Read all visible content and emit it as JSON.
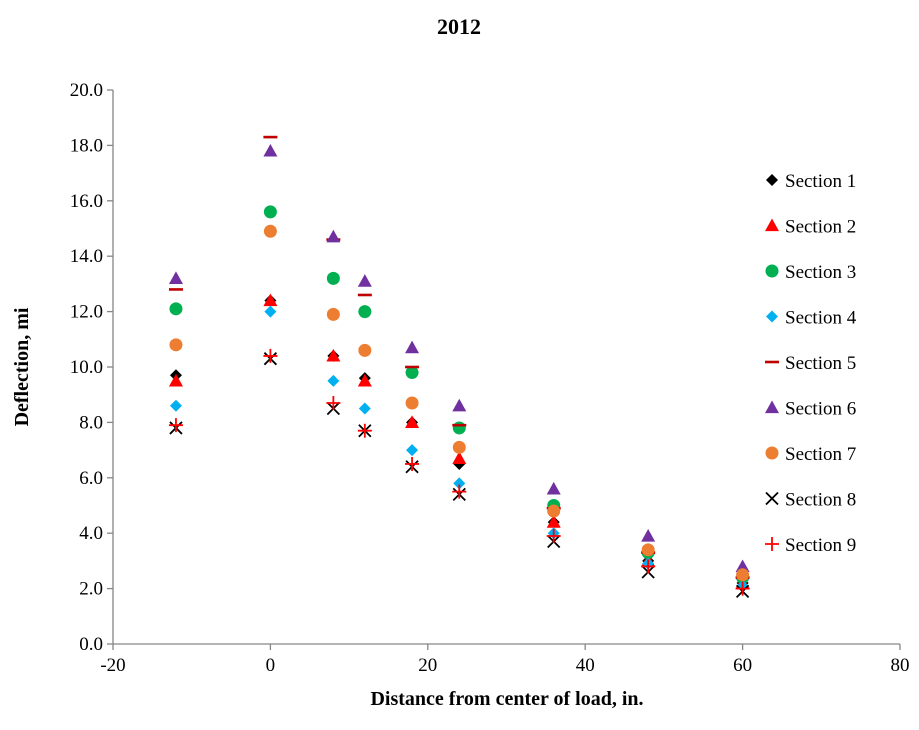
{
  "chart_data": {
    "type": "scatter",
    "title": "2012",
    "xlabel": "Distance from center of load, in.",
    "ylabel": "Deflection, mi",
    "xlim": [
      -20,
      80
    ],
    "ylim": [
      0,
      20
    ],
    "xticks": [
      -20,
      0,
      20,
      40,
      60,
      80
    ],
    "yticks": [
      0,
      2,
      4,
      6,
      8,
      10,
      12,
      14,
      16,
      18,
      20
    ],
    "xtick_labels": [
      "-20",
      "0",
      "20",
      "40",
      "60",
      "80"
    ],
    "ytick_labels": [
      "0.0",
      "2.0",
      "4.0",
      "6.0",
      "8.0",
      "10.0",
      "12.0",
      "14.0",
      "16.0",
      "18.0",
      "20.0"
    ],
    "grid": false,
    "legend_position": "right",
    "x": [
      -12,
      0,
      8,
      12,
      18,
      24,
      36,
      48,
      60
    ],
    "series": [
      {
        "name": "Section 1",
        "marker": "diamond",
        "color": "#000000",
        "values": [
          9.7,
          12.4,
          10.4,
          9.6,
          8.0,
          6.5,
          4.4,
          3.0,
          2.2
        ]
      },
      {
        "name": "Section 2",
        "marker": "triangle",
        "color": "#ff0000",
        "values": [
          9.5,
          12.4,
          10.4,
          9.5,
          8.0,
          6.7,
          4.4,
          3.0,
          2.2
        ]
      },
      {
        "name": "Section 3",
        "marker": "circle",
        "color": "#00b050",
        "values": [
          12.1,
          15.6,
          13.2,
          12.0,
          9.8,
          7.8,
          5.0,
          3.3,
          2.4
        ]
      },
      {
        "name": "Section 4",
        "marker": "diamond",
        "color": "#00b0f0",
        "values": [
          8.6,
          12.0,
          9.5,
          8.5,
          7.0,
          5.8,
          4.0,
          2.9,
          2.1
        ]
      },
      {
        "name": "Section 5",
        "marker": "dash",
        "color": "#c00000",
        "values": [
          12.8,
          18.3,
          14.6,
          12.6,
          10.0,
          7.9,
          4.9,
          3.3,
          2.4
        ]
      },
      {
        "name": "Section 6",
        "marker": "triangle",
        "color": "#7030a0",
        "values": [
          13.2,
          17.8,
          14.7,
          13.1,
          10.7,
          8.6,
          5.6,
          3.9,
          2.8
        ]
      },
      {
        "name": "Section 7",
        "marker": "circle",
        "color": "#ed7d31",
        "values": [
          10.8,
          14.9,
          11.9,
          10.6,
          8.7,
          7.1,
          4.8,
          3.4,
          2.5
        ]
      },
      {
        "name": "Section 8",
        "marker": "x",
        "color": "#000000",
        "values": [
          7.8,
          10.3,
          8.5,
          7.7,
          6.4,
          5.4,
          3.7,
          2.6,
          1.9
        ]
      },
      {
        "name": "Section 9",
        "marker": "plus",
        "color": "#ff0000",
        "values": [
          7.9,
          10.4,
          8.7,
          7.7,
          6.5,
          5.5,
          3.9,
          2.8,
          2.0
        ]
      }
    ]
  }
}
